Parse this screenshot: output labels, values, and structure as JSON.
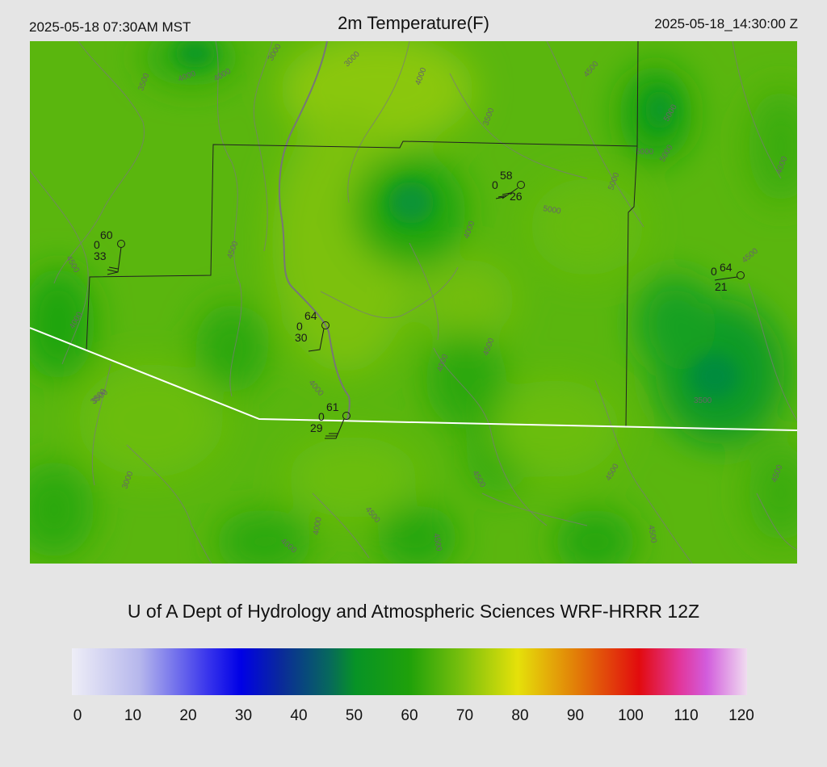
{
  "header": {
    "local_time": "2025-05-18 07:30AM MST",
    "title": "2m Temperature(F)",
    "utc_time": "2025-05-18_14:30:00 Z"
  },
  "footer": {
    "caption": "U of A Dept of Hydrology and Atmospheric Sciences WRF-HRRR 12Z"
  },
  "colorbar": {
    "ticks": [
      "0",
      "10",
      "20",
      "30",
      "40",
      "50",
      "60",
      "70",
      "80",
      "90",
      "100",
      "110",
      "120"
    ]
  },
  "map": {
    "stations": [
      {
        "temp": "60",
        "precip": "0",
        "dewpoint": "33"
      },
      {
        "temp": "58",
        "precip": "0",
        "dewpoint": "26"
      },
      {
        "temp": "64",
        "precip": "0",
        "dewpoint": "21"
      },
      {
        "temp": "64",
        "precip": "0",
        "dewpoint": "30"
      },
      {
        "temp": "61",
        "precip": "0",
        "dewpoint": "29"
      }
    ],
    "contour_labels": [
      "3500",
      "3000",
      "4000",
      "4000",
      "3000",
      "4000",
      "3500",
      "4500",
      "5000",
      "5000",
      "5000",
      "5000",
      "5000",
      "4500",
      "4000",
      "4000",
      "4500",
      "4500",
      "4000",
      "3500",
      "4000",
      "4500",
      "4500",
      "4000",
      "4000",
      "4500",
      "3000",
      "3500",
      "4500",
      "4500",
      "3500",
      "4500",
      "4000",
      "4500"
    ]
  }
}
